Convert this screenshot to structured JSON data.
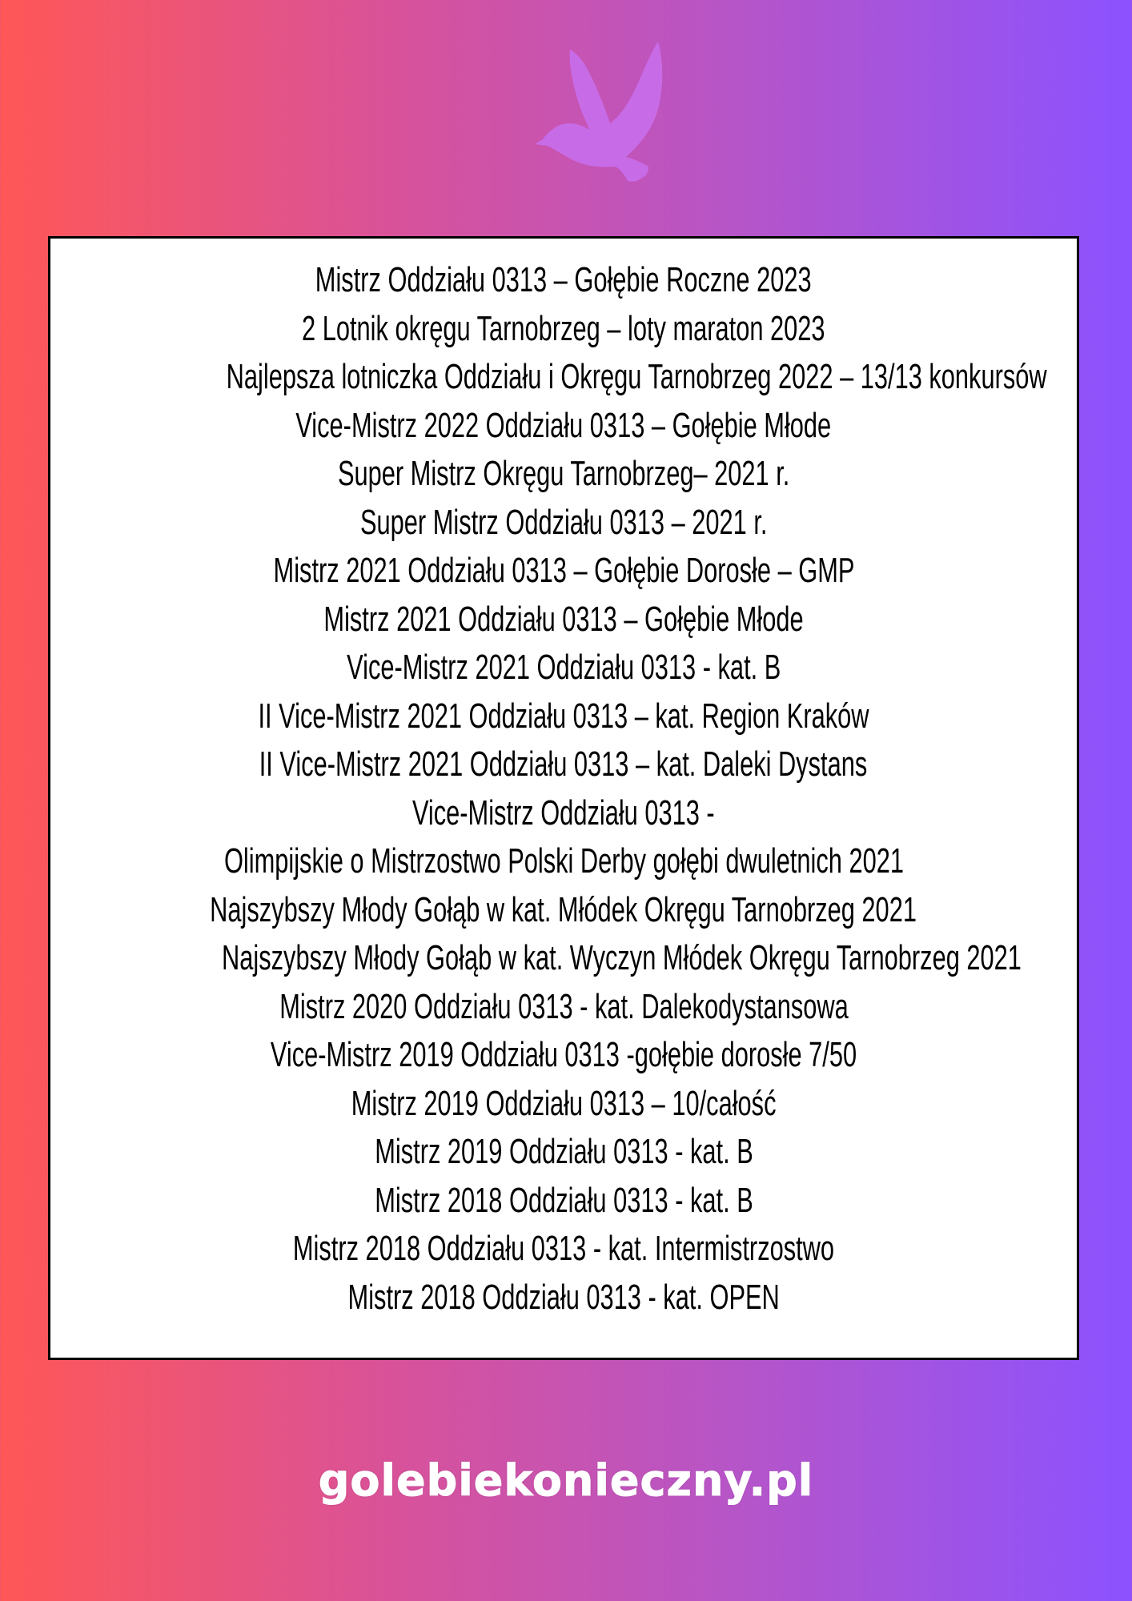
{
  "colors": {
    "gradient_start": "#ff5757",
    "gradient_end": "#8c52ff",
    "dove": "#c86be6"
  },
  "logo": {
    "icon": "dove-icon"
  },
  "achievements": [
    "Mistrz Oddziału 0313 – Gołębie Roczne 2023",
    "2 Lotnik okręgu Tarnobrzeg – loty maraton 2023",
    "Najlepsza lotniczka Oddziału i Okręgu Tarnobrzeg 2022 – 13/13 konkursów",
    "Vice-Mistrz 2022 Oddziału 0313 – Gołębie Młode",
    "Super Mistrz Okręgu Tarnobrzeg– 2021 r.",
    "Super Mistrz Oddziału 0313 – 2021 r.",
    "Mistrz 2021 Oddziału 0313 – Gołębie Dorosłe – GMP",
    "Mistrz 2021 Oddziału 0313 – Gołębie Młode",
    "Vice-Mistrz 2021 Oddziału 0313 - kat. B",
    "II Vice-Mistrz 2021 Oddziału 0313 – kat. Region Kraków",
    "II Vice-Mistrz 2021 Oddziału 0313 – kat. Daleki Dystans",
    "Vice-Mistrz Oddziału 0313 -",
    "Olimpijskie o Mistrzostwo Polski Derby gołębi dwuletnich 2021",
    "Najszybszy Młody Gołąb w kat. Młódek Okręgu Tarnobrzeg 2021",
    "Najszybszy Młody Gołąb w kat. Wyczyn Młódek Okręgu Tarnobrzeg 2021",
    "Mistrz 2020 Oddziału 0313 - kat. Dalekodystansowa",
    "Vice-Mistrz 2019 Oddziału 0313 -gołębie dorosłe 7/50",
    "Mistrz 2019 Oddziału 0313 – 10/całość",
    "Mistrz 2019 Oddziału 0313 - kat. B",
    "Mistrz 2018 Oddziału 0313 - kat. B",
    "Mistrz 2018 Oddziału 0313  - kat. Intermistrzostwo",
    "Mistrz 2018 Oddziału 0313 - kat. OPEN"
  ],
  "footer": {
    "website": "golebiekonieczny.pl"
  }
}
